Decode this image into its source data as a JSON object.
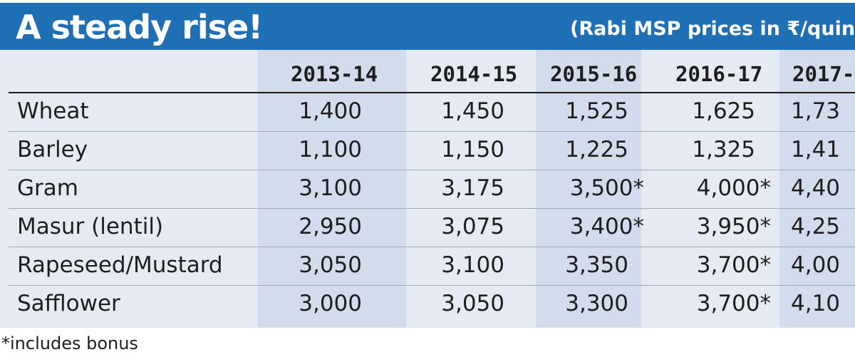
{
  "chart_data": {
    "type": "table",
    "title": "A steady rise!",
    "subtitle": "(Rabi MSP prices in ₹/quinta",
    "columns": [
      "2013-14",
      "2014-15",
      "2015-16",
      "2016-17",
      "2017-"
    ],
    "rows": [
      {
        "label": "Wheat",
        "cells": [
          "1,400",
          "1,450",
          "1,525",
          "1,625",
          "1,73"
        ]
      },
      {
        "label": "Barley",
        "cells": [
          "1,100",
          "1,150",
          "1,225",
          "1,325",
          "1,41"
        ]
      },
      {
        "label": "Gram",
        "cells": [
          "3,100",
          "3,175",
          "3,500*",
          "4,000*",
          "4,40"
        ]
      },
      {
        "label": "Masur (lentil)",
        "cells": [
          "2,950",
          "3,075",
          "3,400*",
          "3,950*",
          "4,25"
        ]
      },
      {
        "label": "Rapeseed/Mustard",
        "cells": [
          "3,050",
          "3,100",
          "3,350",
          "3,700*",
          "4,00"
        ]
      },
      {
        "label": "Safflower",
        "cells": [
          "3,000",
          "3,050",
          "3,300",
          "3,700*",
          "4,10"
        ]
      }
    ],
    "footnote": "*includes bonus"
  },
  "colors": {
    "banner": "#1f6fb5",
    "panel": "#e6ebf3",
    "shaded_column": "#d2dcec",
    "text": "#1e1e1e"
  }
}
